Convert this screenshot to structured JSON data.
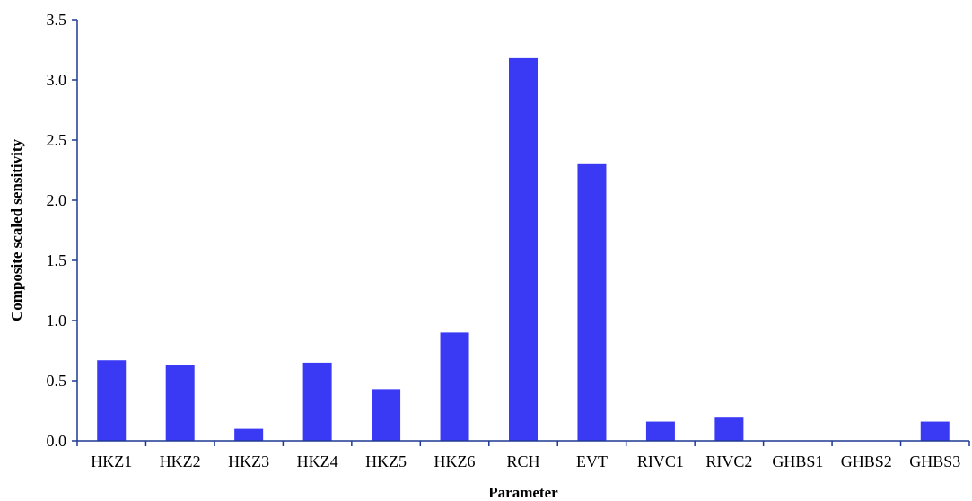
{
  "chart_data": {
    "type": "bar",
    "title": "",
    "xlabel": "Parameter",
    "ylabel": "Composite scaled sensitivity",
    "categories": [
      "HKZ1",
      "HKZ2",
      "HKZ3",
      "HKZ4",
      "HKZ5",
      "HKZ6",
      "RCH",
      "EVT",
      "RIVC1",
      "RIVC2",
      "GHBS1",
      "GHBS2",
      "GHBS3"
    ],
    "values": [
      0.67,
      0.63,
      0.1,
      0.65,
      0.43,
      0.9,
      3.18,
      2.3,
      0.16,
      0.2,
      0.0,
      0.0,
      0.16
    ],
    "ylim": [
      0,
      3.5
    ],
    "yticks": [
      0.0,
      0.5,
      1.0,
      1.5,
      2.0,
      2.5,
      3.0,
      3.5
    ],
    "ytick_labels": [
      "0.0",
      "0.5",
      "1.0",
      "1.5",
      "2.0",
      "2.5",
      "3.0",
      "3.5"
    ],
    "grid": false,
    "legend": "none",
    "bar_color": "#3a3af5",
    "axis_color": "#1f3a93"
  }
}
